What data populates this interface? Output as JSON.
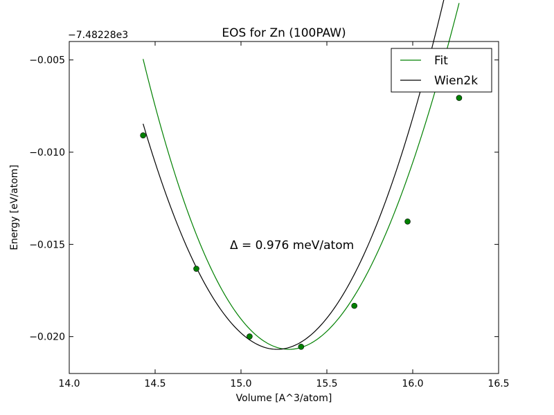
{
  "chart_data": {
    "type": "line",
    "title": "EOS for Zn (100PAW)",
    "xlabel": "Volume [A^3/atom]",
    "ylabel": "Energy [eV/atom]",
    "offset_label": "−7.48228e3",
    "xlim": [
      14.0,
      16.5
    ],
    "ylim": [
      -0.022,
      -0.004
    ],
    "x_ticks": [
      14.0,
      14.5,
      15.0,
      15.5,
      16.0,
      16.5
    ],
    "x_tick_labels": [
      "14.0",
      "14.5",
      "15.0",
      "15.5",
      "16.0",
      "16.5"
    ],
    "y_ticks": [
      -0.02,
      -0.015,
      -0.01,
      -0.005
    ],
    "y_tick_labels": [
      "−0.020",
      "−0.015",
      "−0.010",
      "−0.005"
    ],
    "legend_position": "top-right",
    "annotation": "Δ = 0.976 meV/atom",
    "series": [
      {
        "name": "Fit",
        "kind": "line",
        "color": "#008000",
        "x_range": [
          14.43,
          16.27
        ],
        "curve": {
          "v0": 15.28,
          "e0": -0.02069,
          "a": 0.02057,
          "b": -0.00143
        }
      },
      {
        "name": "Wien2k",
        "kind": "line",
        "color": "#000000",
        "x_range": [
          14.43,
          16.27
        ],
        "curve": {
          "v0": 15.21,
          "e0": -0.02069,
          "a": 0.0201,
          "b": 0.0
        }
      },
      {
        "name": "points",
        "kind": "points",
        "color": "#008000",
        "x": [
          14.43,
          14.74,
          15.05,
          15.35,
          15.66,
          15.97,
          16.27
        ],
        "y": [
          -0.00909,
          -0.01632,
          -0.01999,
          -0.02055,
          -0.01833,
          -0.01376,
          -0.00706
        ]
      }
    ]
  }
}
